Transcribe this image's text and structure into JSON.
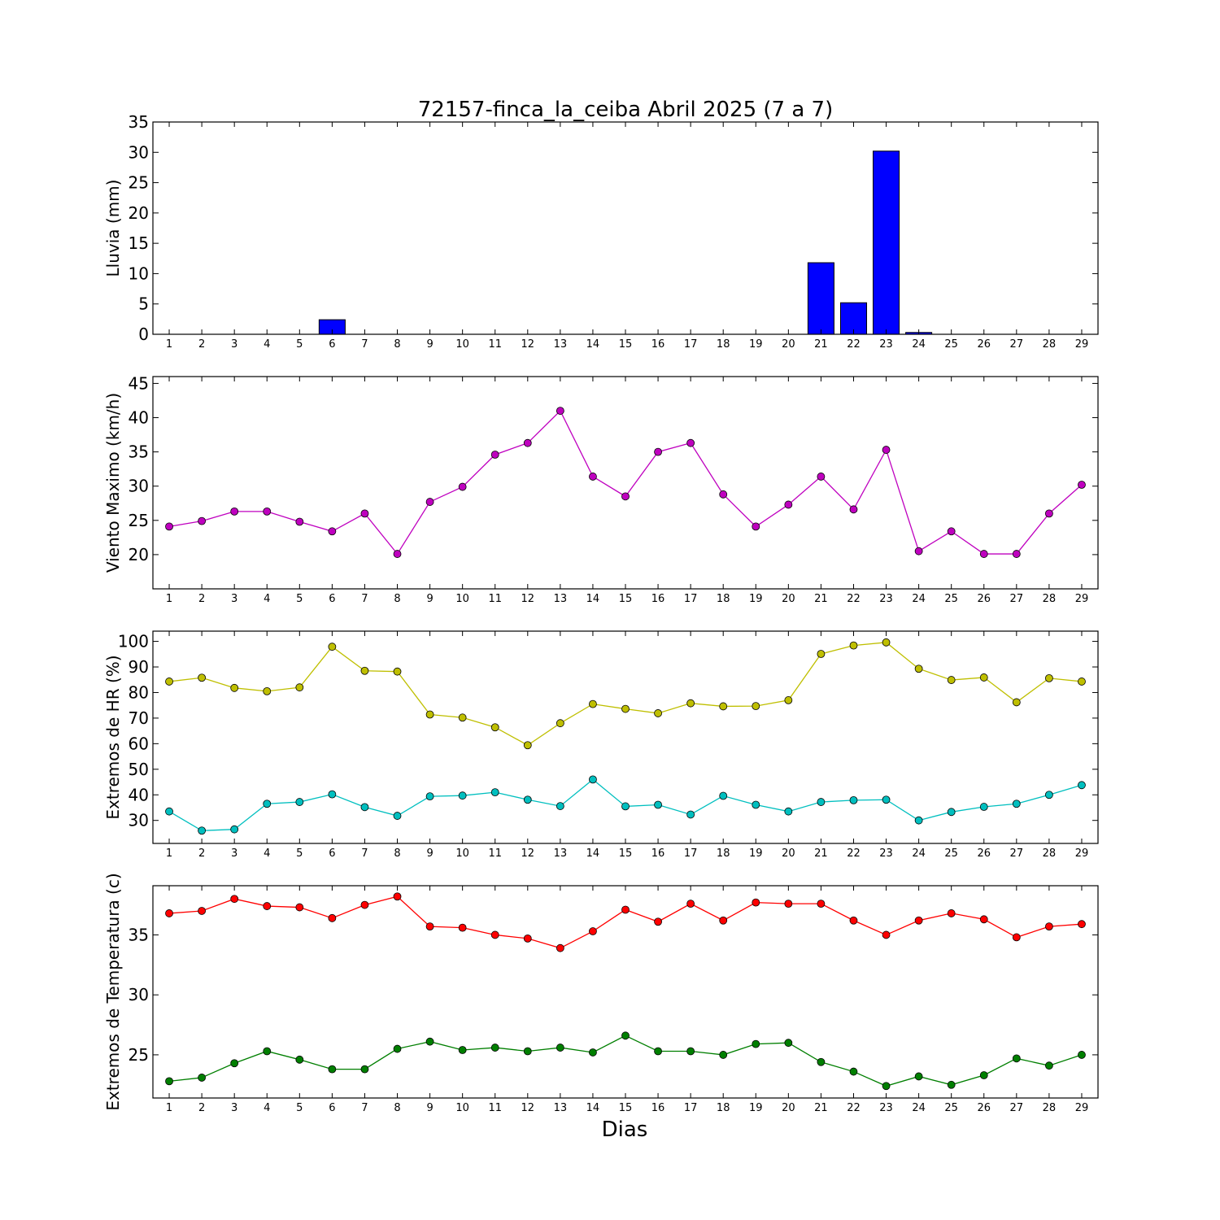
{
  "figure": {
    "title": "72157-finca_la_ceiba Abril 2025  (7 a 7)",
    "xlabel": "Dias"
  },
  "chart_data": [
    {
      "type": "bar",
      "ylabel": "Lluvia (mm)",
      "ylim": [
        0,
        35
      ],
      "yticks": [
        0,
        5,
        10,
        15,
        20,
        25,
        30,
        35
      ],
      "categories": [
        1,
        2,
        3,
        4,
        5,
        6,
        7,
        8,
        9,
        10,
        11,
        12,
        13,
        14,
        15,
        16,
        17,
        18,
        19,
        20,
        21,
        22,
        23,
        24,
        25,
        26,
        27,
        28,
        29
      ],
      "series": [
        {
          "color": "#0000ff",
          "values": [
            0,
            0,
            0,
            0,
            0,
            2.4,
            0,
            0,
            0,
            0,
            0,
            0,
            0,
            0,
            0,
            0,
            0,
            0,
            0,
            0,
            11.8,
            5.2,
            30.2,
            0.3,
            0,
            0,
            0,
            0,
            0
          ]
        }
      ],
      "grid": false
    },
    {
      "type": "line",
      "ylabel": "Viento Maximo (km/h)",
      "ylim": [
        15,
        46
      ],
      "yticks": [
        20,
        25,
        30,
        35,
        40,
        45
      ],
      "categories": [
        1,
        2,
        3,
        4,
        5,
        6,
        7,
        8,
        9,
        10,
        11,
        12,
        13,
        14,
        15,
        16,
        17,
        18,
        19,
        20,
        21,
        22,
        23,
        24,
        25,
        26,
        27,
        28,
        29
      ],
      "series": [
        {
          "color": "#bf00bf",
          "values": [
            24.1,
            24.9,
            26.3,
            26.3,
            24.8,
            23.4,
            26.0,
            20.1,
            27.7,
            29.9,
            34.6,
            36.3,
            41.0,
            31.4,
            28.5,
            35.0,
            36.3,
            28.8,
            24.1,
            27.3,
            31.4,
            26.6,
            35.3,
            20.5,
            23.4,
            20.1,
            20.1,
            26.0,
            30.2
          ]
        }
      ],
      "grid": false
    },
    {
      "type": "line",
      "ylabel": "Extremos de HR (%)",
      "ylim": [
        21,
        104
      ],
      "yticks": [
        30,
        40,
        50,
        60,
        70,
        80,
        90,
        100
      ],
      "categories": [
        1,
        2,
        3,
        4,
        5,
        6,
        7,
        8,
        9,
        10,
        11,
        12,
        13,
        14,
        15,
        16,
        17,
        18,
        19,
        20,
        21,
        22,
        23,
        24,
        25,
        26,
        27,
        28,
        29
      ],
      "series": [
        {
          "color": "#bfbf00",
          "values": [
            84.3,
            85.8,
            81.8,
            80.5,
            82.0,
            97.9,
            88.5,
            88.2,
            71.4,
            70.2,
            66.4,
            59.4,
            68.0,
            75.5,
            73.6,
            71.9,
            75.8,
            74.6,
            74.7,
            77.0,
            95.1,
            98.4,
            99.6,
            89.3,
            84.9,
            85.9,
            76.2,
            85.6,
            84.3
          ]
        },
        {
          "color": "#00bfbf",
          "values": [
            33.5,
            26.0,
            26.5,
            36.5,
            37.2,
            40.2,
            35.2,
            31.8,
            39.4,
            39.7,
            41.0,
            38.1,
            35.6,
            46.0,
            35.5,
            36.1,
            32.3,
            39.6,
            36.1,
            33.5,
            37.2,
            37.9,
            38.1,
            30.0,
            33.3,
            35.3,
            36.5,
            40.0,
            43.8
          ]
        }
      ],
      "grid": false
    },
    {
      "type": "line",
      "ylabel": "Extremos de Temperatura (c)",
      "ylim": [
        21.4,
        39.1
      ],
      "yticks": [
        25,
        30,
        35
      ],
      "categories": [
        1,
        2,
        3,
        4,
        5,
        6,
        7,
        8,
        9,
        10,
        11,
        12,
        13,
        14,
        15,
        16,
        17,
        18,
        19,
        20,
        21,
        22,
        23,
        24,
        25,
        26,
        27,
        28,
        29
      ],
      "series": [
        {
          "color": "#ff0000",
          "values": [
            36.8,
            37.0,
            38.0,
            37.4,
            37.3,
            36.4,
            37.5,
            38.2,
            35.7,
            35.6,
            35.0,
            34.7,
            33.9,
            35.3,
            37.1,
            36.1,
            37.6,
            36.2,
            37.7,
            37.6,
            37.6,
            36.2,
            35.0,
            36.2,
            36.8,
            36.3,
            34.8,
            35.7,
            35.9
          ]
        },
        {
          "color": "#007f00",
          "values": [
            22.8,
            23.1,
            24.3,
            25.3,
            24.6,
            23.8,
            23.8,
            25.5,
            26.1,
            25.4,
            25.6,
            25.3,
            25.6,
            25.2,
            26.6,
            25.3,
            25.3,
            25.0,
            25.9,
            26.0,
            24.4,
            23.6,
            22.4,
            23.2,
            22.5,
            23.3,
            24.7,
            24.1,
            25.0
          ]
        }
      ],
      "grid": false
    }
  ]
}
